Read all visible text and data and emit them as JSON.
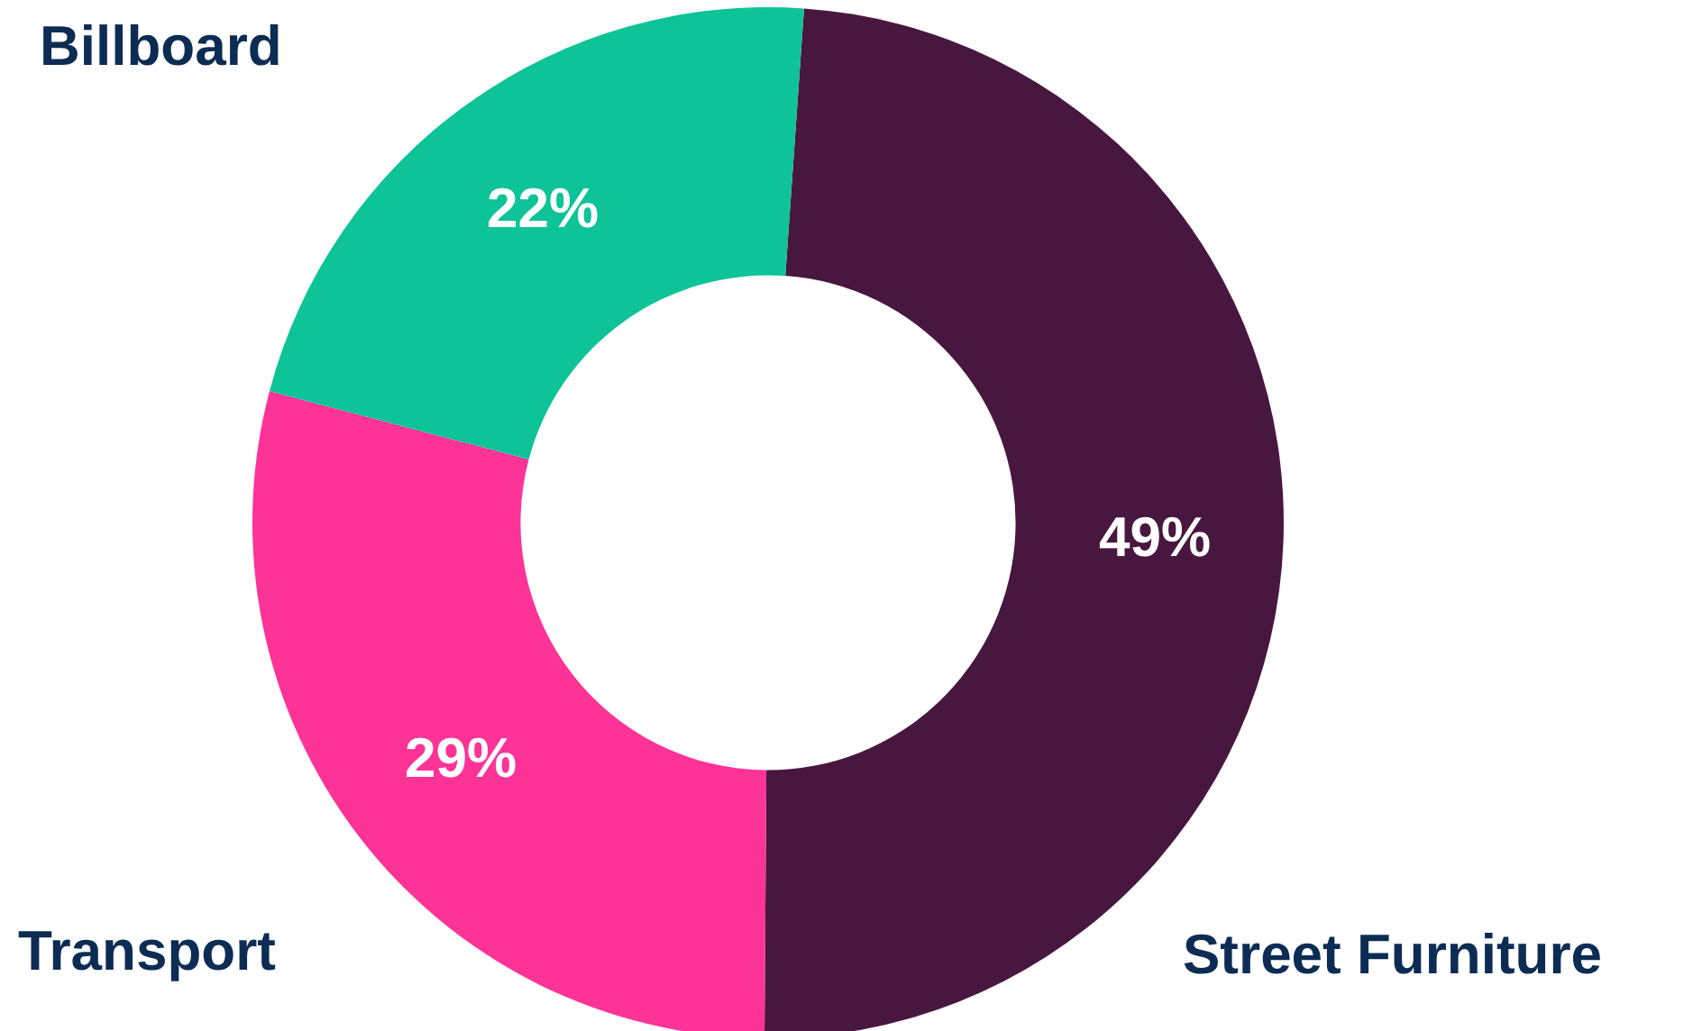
{
  "chart_data": {
    "type": "donut",
    "categories": [
      "Street Furniture",
      "Transport",
      "Billboard"
    ],
    "values": [
      49,
      29,
      22
    ],
    "colors": [
      "#48173f",
      "#fd3398",
      "#0dc397"
    ],
    "value_labels": [
      "49%",
      "29%",
      "22%"
    ],
    "legend": false
  }
}
